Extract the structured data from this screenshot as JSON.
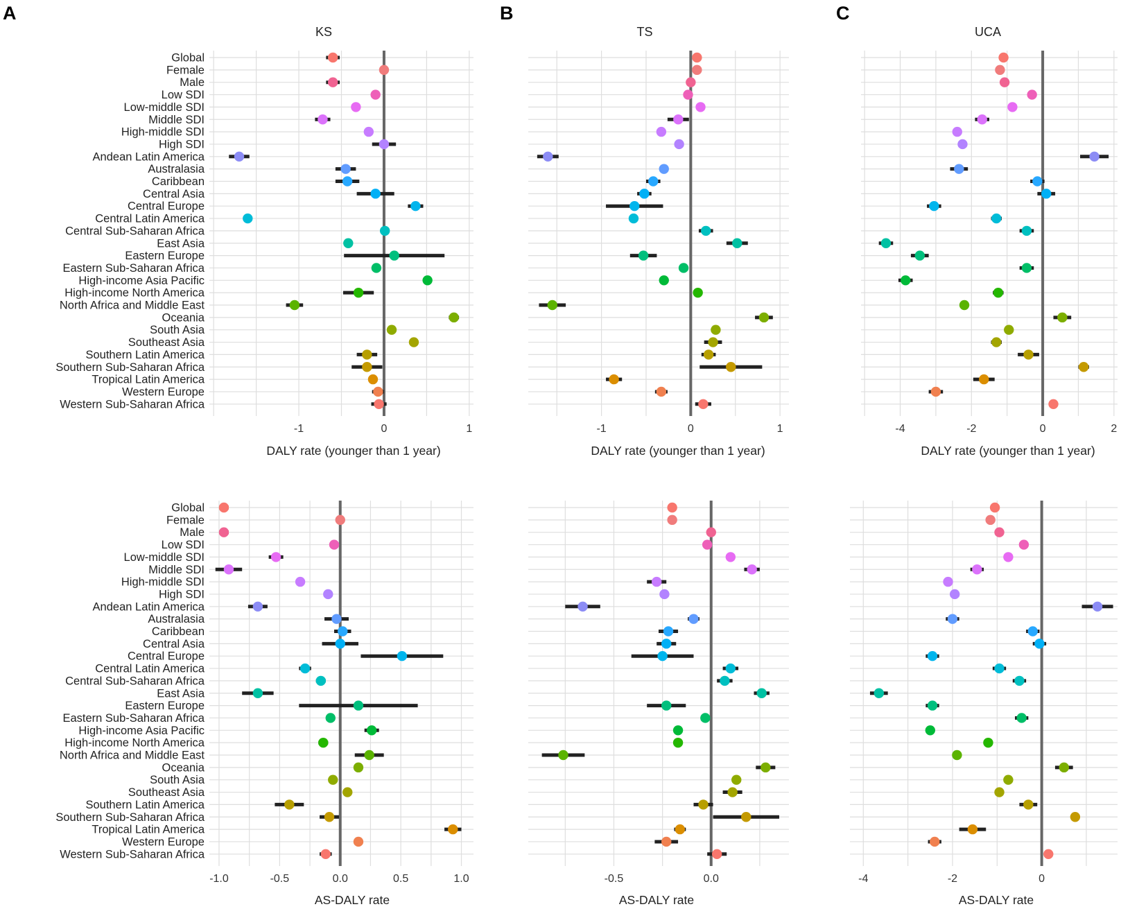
{
  "categories": [
    "Global",
    "Female",
    "Male",
    "Low SDI",
    "Low-middle SDI",
    "Middle SDI",
    "High-middle SDI",
    "High SDI",
    "Andean Latin America",
    "Australasia",
    "Caribbean",
    "Central Asia",
    "Central Europe",
    "Central Latin America",
    "Central Sub-Saharan Africa",
    "East Asia",
    "Eastern Europe",
    "Eastern Sub-Saharan Africa",
    "High-income Asia Pacific",
    "High-income North America",
    "North Africa and Middle East",
    "Oceania",
    "South Asia",
    "Southeast Asia",
    "Southern Latin America",
    "Southern Sub-Saharan Africa",
    "Tropical Latin America",
    "Western Europe",
    "Western Sub-Saharan Africa"
  ],
  "colors": [
    "#f8766d",
    "#f07c7c",
    "#f06392",
    "#ee5fb8",
    "#e76bf3",
    "#db72fb",
    "#c77cff",
    "#b283ff",
    "#8c8cf5",
    "#619cff",
    "#28a8ff",
    "#00b0f6",
    "#00b5ed",
    "#00bcd8",
    "#00c0c0",
    "#00c1a3",
    "#00bf7d",
    "#00be67",
    "#00ba38",
    "#24b700",
    "#5bb300",
    "#7cae00",
    "#8fab00",
    "#a3a500",
    "#b79f00",
    "#c49a00",
    "#db8e00",
    "#f0804f",
    "#f8766d"
  ],
  "letters": {
    "A": "A",
    "B": "B",
    "C": "C"
  },
  "chart_data": [
    {
      "type": "scatter",
      "subtype": "forest-plot",
      "panel": "A-top",
      "title": "KS",
      "xlabel": "DALY rate (younger than 1 year)",
      "ylabel": "",
      "xlim": [
        -2.05,
        1.05
      ],
      "xticks": [
        -1,
        0,
        1
      ],
      "xtick_labels": [
        "-1",
        "0",
        "1"
      ],
      "grid": true,
      "values": [
        -0.6,
        0.0,
        -0.6,
        -0.1,
        -0.33,
        -0.72,
        -0.18,
        0.0,
        -1.7,
        -0.45,
        -0.43,
        -0.1,
        0.37,
        -1.6,
        0.01,
        -0.42,
        0.12,
        -0.09,
        0.51,
        -0.3,
        -1.05,
        0.82,
        0.09,
        0.35,
        -0.2,
        -0.2,
        -0.13,
        -0.07,
        -0.06
      ],
      "lower": [
        -0.68,
        -0.01,
        -0.68,
        -0.11,
        -0.38,
        -0.81,
        -0.2,
        -0.14,
        -1.82,
        -0.57,
        -0.57,
        -0.32,
        0.28,
        -1.65,
        0.0,
        -0.44,
        -0.47,
        -0.12,
        0.46,
        -0.48,
        -1.15,
        0.76,
        0.08,
        0.3,
        -0.32,
        -0.38,
        -0.15,
        -0.14,
        -0.15
      ],
      "upper": [
        -0.52,
        0.01,
        -0.52,
        -0.09,
        -0.28,
        -0.63,
        -0.16,
        0.14,
        -1.58,
        -0.33,
        -0.29,
        0.12,
        0.46,
        -1.55,
        0.02,
        -0.4,
        0.71,
        -0.06,
        0.56,
        -0.12,
        -0.95,
        0.88,
        0.1,
        0.4,
        -0.08,
        -0.02,
        -0.11,
        0.0,
        0.03
      ]
    },
    {
      "type": "scatter",
      "subtype": "forest-plot",
      "panel": "B-top",
      "title": "TS",
      "xlabel": "DALY rate (younger than 1 year)",
      "ylabel": "",
      "xlim": [
        -1.82,
        1.1
      ],
      "xticks": [
        -1,
        0,
        1
      ],
      "xtick_labels": [
        "-1",
        "0",
        "1"
      ],
      "grid": true,
      "values": [
        0.07,
        0.07,
        0.0,
        -0.03,
        0.11,
        -0.14,
        -0.33,
        -0.13,
        -1.6,
        -0.3,
        -0.42,
        -0.52,
        -0.63,
        -0.64,
        0.17,
        0.52,
        -0.53,
        -0.08,
        -0.3,
        0.08,
        -1.55,
        0.82,
        0.28,
        0.25,
        0.2,
        0.45,
        -0.86,
        -0.33,
        0.14
      ],
      "lower": [
        0.03,
        0.05,
        -0.01,
        -0.05,
        0.08,
        -0.26,
        -0.37,
        -0.15,
        -1.72,
        -0.32,
        -0.5,
        -0.6,
        -0.95,
        -0.67,
        0.09,
        0.4,
        -0.68,
        -0.12,
        -0.32,
        0.03,
        -1.7,
        0.72,
        0.25,
        0.15,
        0.12,
        0.1,
        -0.95,
        -0.4,
        0.05
      ],
      "upper": [
        0.11,
        0.09,
        0.01,
        -0.01,
        0.14,
        -0.02,
        -0.29,
        -0.11,
        -1.48,
        -0.28,
        -0.34,
        -0.44,
        -0.31,
        -0.61,
        0.25,
        0.64,
        -0.38,
        -0.04,
        -0.28,
        0.13,
        -1.4,
        0.92,
        0.31,
        0.35,
        0.28,
        0.8,
        -0.77,
        -0.26,
        0.23
      ]
    },
    {
      "type": "scatter",
      "subtype": "forest-plot",
      "panel": "C-top",
      "title": "UCA",
      "xlabel": "DALY rate (younger than 1 year)",
      "ylabel": "",
      "xlim": [
        -5.1,
        2.1
      ],
      "xticks": [
        -4,
        -2,
        0,
        2
      ],
      "xtick_labels": [
        "-4",
        "-2",
        "0",
        "2"
      ],
      "grid": true,
      "values": [
        -1.1,
        -1.2,
        -1.07,
        -0.3,
        -0.85,
        -1.7,
        -2.4,
        -2.25,
        1.45,
        -2.35,
        -0.15,
        0.1,
        -3.05,
        -1.3,
        -0.45,
        -4.4,
        -3.45,
        -0.45,
        -3.85,
        -1.25,
        -2.2,
        0.55,
        -0.95,
        -1.3,
        -0.4,
        1.15,
        -1.65,
        -3.0,
        0.3
      ],
      "lower": [
        -1.2,
        -1.25,
        -1.15,
        -0.35,
        -0.95,
        -1.9,
        -2.45,
        -2.3,
        1.05,
        -2.6,
        -0.35,
        -0.15,
        -3.25,
        -1.45,
        -0.65,
        -4.6,
        -3.7,
        -0.65,
        -4.05,
        -1.4,
        -2.25,
        0.3,
        -1.05,
        -1.45,
        -0.7,
        1.0,
        -1.95,
        -3.2,
        0.25
      ],
      "upper": [
        -1.0,
        -1.15,
        -0.99,
        -0.25,
        -0.75,
        -1.5,
        -2.35,
        -2.2,
        1.85,
        -2.1,
        0.05,
        0.35,
        -2.85,
        -1.15,
        -0.25,
        -4.2,
        -3.2,
        -0.25,
        -3.65,
        -1.1,
        -2.15,
        0.8,
        -0.85,
        -1.15,
        -0.1,
        1.3,
        -1.35,
        -2.8,
        0.35
      ]
    },
    {
      "type": "scatter",
      "subtype": "forest-plot",
      "panel": "A-bottom",
      "title": "",
      "xlabel": "AS-DALY rate",
      "ylabel": "",
      "xlim": [
        -1.08,
        1.1
      ],
      "xticks": [
        -1.0,
        -0.5,
        0.0,
        0.5,
        1.0
      ],
      "xtick_labels": [
        "-1.0",
        "-0.5",
        "0.0",
        "0.5",
        "1.0"
      ],
      "grid": true,
      "values": [
        -0.96,
        0.0,
        -0.96,
        -0.05,
        -0.53,
        -0.92,
        -0.33,
        -0.1,
        -0.68,
        -0.03,
        0.02,
        0.0,
        0.51,
        -0.29,
        -0.16,
        -0.68,
        0.15,
        -0.08,
        0.26,
        -0.14,
        0.24,
        0.15,
        -0.06,
        0.06,
        -0.42,
        -0.09,
        0.93,
        0.15,
        -0.12
      ],
      "lower": [
        -1.0,
        -0.01,
        -1.0,
        -0.06,
        -0.59,
        -1.03,
        -0.34,
        -0.11,
        -0.76,
        -0.13,
        -0.05,
        -0.15,
        0.17,
        -0.34,
        -0.2,
        -0.81,
        -0.34,
        -0.11,
        0.2,
        -0.18,
        0.12,
        0.14,
        -0.07,
        0.05,
        -0.54,
        -0.17,
        0.86,
        0.14,
        -0.17
      ],
      "upper": [
        -0.92,
        0.01,
        -0.92,
        -0.04,
        -0.47,
        -0.81,
        -0.32,
        -0.09,
        -0.6,
        0.07,
        0.09,
        0.15,
        0.85,
        -0.24,
        -0.12,
        -0.55,
        0.64,
        -0.05,
        0.32,
        -0.1,
        0.36,
        0.16,
        -0.05,
        0.07,
        -0.3,
        -0.01,
        1.0,
        0.16,
        -0.07
      ]
    },
    {
      "type": "scatter",
      "subtype": "forest-plot",
      "panel": "B-bottom",
      "title": "",
      "xlabel": "AS-DALY rate",
      "ylabel": "",
      "xlim": [
        -0.94,
        0.4
      ],
      "xticks": [
        -0.5,
        0.0
      ],
      "xtick_labels": [
        "-0.5",
        "0.0"
      ],
      "grid": true,
      "values": [
        -0.2,
        -0.2,
        0.0,
        -0.02,
        0.1,
        0.21,
        -0.28,
        -0.24,
        -0.66,
        -0.09,
        -0.22,
        -0.23,
        -0.25,
        0.1,
        0.07,
        0.26,
        -0.23,
        -0.03,
        -0.17,
        -0.17,
        -0.76,
        0.28,
        0.13,
        0.11,
        -0.04,
        0.18,
        -0.16,
        -0.23,
        0.03
      ],
      "lower": [
        -0.21,
        -0.21,
        -0.01,
        -0.03,
        0.09,
        0.17,
        -0.33,
        -0.25,
        -0.75,
        -0.12,
        -0.27,
        -0.28,
        -0.41,
        0.06,
        0.03,
        0.22,
        -0.33,
        -0.04,
        -0.18,
        -0.18,
        -0.87,
        0.23,
        0.12,
        0.06,
        -0.09,
        0.01,
        -0.19,
        -0.29,
        -0.02
      ],
      "upper": [
        -0.19,
        -0.19,
        0.01,
        -0.01,
        0.11,
        0.25,
        -0.23,
        -0.23,
        -0.57,
        -0.06,
        -0.17,
        -0.18,
        -0.09,
        0.14,
        0.11,
        0.3,
        -0.13,
        -0.02,
        -0.16,
        -0.16,
        -0.65,
        0.33,
        0.14,
        0.16,
        0.01,
        0.35,
        -0.13,
        -0.17,
        0.08
      ]
    },
    {
      "type": "scatter",
      "subtype": "forest-plot",
      "panel": "C-bottom",
      "title": "",
      "xlabel": "AS-DALY rate",
      "ylabel": "",
      "xlim": [
        -4.3,
        1.7
      ],
      "xticks": [
        -4,
        -2,
        0
      ],
      "xtick_labels": [
        "-4",
        "-2",
        "0"
      ],
      "grid": true,
      "values": [
        -1.05,
        -1.15,
        -0.95,
        -0.4,
        -0.75,
        -1.45,
        -2.1,
        -1.95,
        1.25,
        -2.0,
        -0.2,
        -0.05,
        -2.45,
        -0.95,
        -0.5,
        -3.65,
        -2.45,
        -0.45,
        -2.5,
        -1.2,
        -1.9,
        0.5,
        -0.75,
        -0.95,
        -0.3,
        0.75,
        -1.55,
        -2.4,
        0.15
      ],
      "lower": [
        -1.1,
        -1.2,
        -1.05,
        -0.45,
        -0.8,
        -1.6,
        -2.2,
        -2.0,
        0.9,
        -2.15,
        -0.35,
        -0.2,
        -2.6,
        -1.1,
        -0.65,
        -3.85,
        -2.6,
        -0.6,
        -2.55,
        -1.3,
        -1.95,
        0.3,
        -0.8,
        -1.05,
        -0.5,
        0.65,
        -1.85,
        -2.55,
        0.1
      ],
      "upper": [
        -1.0,
        -1.1,
        -0.85,
        -0.35,
        -0.7,
        -1.3,
        -2.0,
        -1.9,
        1.6,
        -1.85,
        -0.05,
        0.1,
        -2.3,
        -0.8,
        -0.35,
        -3.45,
        -2.3,
        -0.3,
        -2.45,
        -1.1,
        -1.85,
        0.7,
        -0.7,
        -0.85,
        -0.1,
        0.85,
        -1.25,
        -2.25,
        0.2
      ]
    }
  ]
}
